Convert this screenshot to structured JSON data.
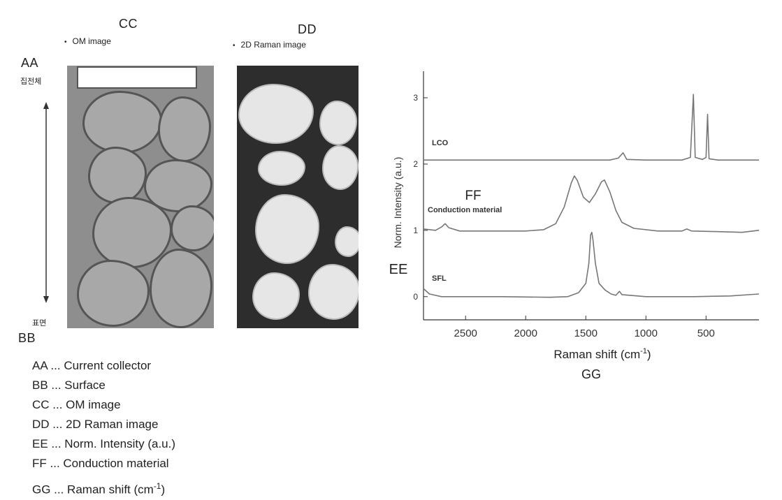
{
  "labels": {
    "aa": "AA",
    "aa_ko": "집전체",
    "bb": "BB",
    "bb_ko": "표면",
    "cc": "CC",
    "cc_sub": "OM image",
    "dd": "DD",
    "dd_sub": "2D Raman image",
    "ee": "EE",
    "ff": "FF",
    "gg": "GG"
  },
  "legend": [
    "AA ... Current collector",
    "BB ... Surface",
    "CC ... OM image",
    "DD ... 2D Raman image",
    "EE ... Norm. Intensity (a.u.)",
    "FF ... Conduction material"
  ],
  "legend_last": {
    "text": "GG ... Raman shift (cm",
    "sup": "-1",
    "close": ")"
  },
  "chart_data": {
    "type": "line",
    "xlabel": "Raman shift (cm",
    "xlabel_sup": "-1",
    "xlabel_close": ")",
    "ylabel": "Norm. Intensity (a.u.)",
    "x_reversed": true,
    "xlim": [
      2850,
      60
    ],
    "ylim": [
      -0.35,
      3.4
    ],
    "x_ticks": [
      2500,
      2000,
      1500,
      1000,
      500
    ],
    "y_ticks": [
      0,
      1,
      2,
      3
    ],
    "series": [
      {
        "name": "LCO",
        "color": "#777777",
        "points": [
          [
            2850,
            2.06
          ],
          [
            2400,
            2.06
          ],
          [
            1800,
            2.06
          ],
          [
            1300,
            2.06
          ],
          [
            1230,
            2.09
          ],
          [
            1190,
            2.17
          ],
          [
            1160,
            2.07
          ],
          [
            1000,
            2.06
          ],
          [
            700,
            2.06
          ],
          [
            630,
            2.1
          ],
          [
            605,
            3.05
          ],
          [
            590,
            2.1
          ],
          [
            530,
            2.07
          ],
          [
            500,
            2.1
          ],
          [
            487,
            2.75
          ],
          [
            475,
            2.08
          ],
          [
            400,
            2.06
          ],
          [
            60,
            2.06
          ]
        ]
      },
      {
        "name": "Conduction material",
        "color": "#777777",
        "points": [
          [
            2850,
            1.02
          ],
          [
            2750,
            1.0
          ],
          [
            2700,
            1.05
          ],
          [
            2670,
            1.1
          ],
          [
            2640,
            1.04
          ],
          [
            2550,
            0.99
          ],
          [
            2300,
            0.99
          ],
          [
            2000,
            0.99
          ],
          [
            1850,
            1.01
          ],
          [
            1750,
            1.1
          ],
          [
            1680,
            1.35
          ],
          [
            1620,
            1.72
          ],
          [
            1595,
            1.82
          ],
          [
            1570,
            1.75
          ],
          [
            1520,
            1.5
          ],
          [
            1470,
            1.42
          ],
          [
            1420,
            1.55
          ],
          [
            1370,
            1.73
          ],
          [
            1345,
            1.76
          ],
          [
            1300,
            1.58
          ],
          [
            1250,
            1.3
          ],
          [
            1200,
            1.12
          ],
          [
            1100,
            1.03
          ],
          [
            900,
            0.99
          ],
          [
            700,
            0.99
          ],
          [
            660,
            1.02
          ],
          [
            620,
            0.99
          ],
          [
            400,
            0.98
          ],
          [
            200,
            0.97
          ],
          [
            60,
            1.0
          ]
        ]
      },
      {
        "name": "SFL",
        "color": "#777777",
        "points": [
          [
            2850,
            0.12
          ],
          [
            2800,
            0.04
          ],
          [
            2700,
            0.0
          ],
          [
            2200,
            0.0
          ],
          [
            1800,
            -0.01
          ],
          [
            1650,
            0.0
          ],
          [
            1560,
            0.06
          ],
          [
            1500,
            0.2
          ],
          [
            1475,
            0.5
          ],
          [
            1460,
            0.93
          ],
          [
            1450,
            0.97
          ],
          [
            1440,
            0.85
          ],
          [
            1420,
            0.5
          ],
          [
            1390,
            0.2
          ],
          [
            1340,
            0.1
          ],
          [
            1290,
            0.04
          ],
          [
            1250,
            0.02
          ],
          [
            1220,
            0.08
          ],
          [
            1200,
            0.03
          ],
          [
            1000,
            0.0
          ],
          [
            600,
            0.0
          ],
          [
            300,
            0.01
          ],
          [
            60,
            0.04
          ]
        ]
      }
    ]
  }
}
